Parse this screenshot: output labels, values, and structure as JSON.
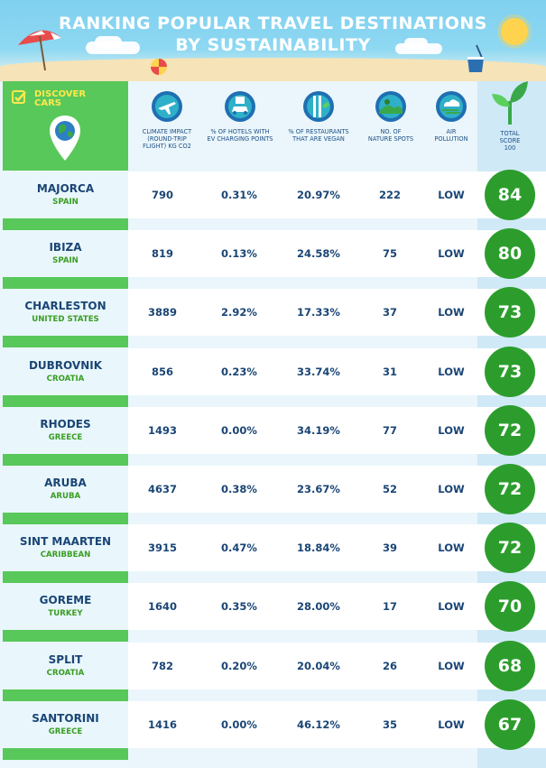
{
  "header": {
    "title_line1": "RANKING POPULAR TRAVEL DESTINATIONS",
    "title_line2": "BY SUSTAINABILITY"
  },
  "brand": {
    "line1": "DISCOVER",
    "line2": "CARS",
    "color": "#ffe84d"
  },
  "columns": [
    {
      "key": "climate",
      "icon": "airplane-icon",
      "label_lines": [
        "CLIMATE IMPACT",
        "(ROUND-TRIP",
        "FLIGHT) KG CO2"
      ]
    },
    {
      "key": "ev",
      "icon": "ev-charging-car-icon",
      "label_lines": [
        "% OF HOTELS WITH",
        "EV CHARGING POINTS"
      ]
    },
    {
      "key": "vegan",
      "icon": "vegan-cutlery-icon",
      "label_lines": [
        "% OF RESTAURANTS",
        "THAT ARE VEGAN"
      ]
    },
    {
      "key": "nature",
      "icon": "nature-hills-icon",
      "label_lines": [
        "NO. OF",
        "NATURE SPOTS"
      ]
    },
    {
      "key": "air",
      "icon": "cloud-wind-icon",
      "label_lines": [
        "AIR",
        "POLLUTION"
      ]
    },
    {
      "key": "score",
      "icon": "sprout-icon",
      "label_lines": [
        "TOTAL",
        "SCORE",
        "100"
      ]
    }
  ],
  "rows": [
    {
      "city": "MAJORCA",
      "country": "SPAIN",
      "climate": "790",
      "ev": "0.31%",
      "vegan": "20.97%",
      "nature": "222",
      "air": "LOW",
      "score": "84"
    },
    {
      "city": "IBIZA",
      "country": "SPAIN",
      "climate": "819",
      "ev": "0.13%",
      "vegan": "24.58%",
      "nature": "75",
      "air": "LOW",
      "score": "80"
    },
    {
      "city": "CHARLESTON",
      "country": "UNITED STATES",
      "climate": "3889",
      "ev": "2.92%",
      "vegan": "17.33%",
      "nature": "37",
      "air": "LOW",
      "score": "73"
    },
    {
      "city": "DUBROVNIK",
      "country": "CROATIA",
      "climate": "856",
      "ev": "0.23%",
      "vegan": "33.74%",
      "nature": "31",
      "air": "LOW",
      "score": "73"
    },
    {
      "city": "RHODES",
      "country": "GREECE",
      "climate": "1493",
      "ev": "0.00%",
      "vegan": "34.19%",
      "nature": "77",
      "air": "LOW",
      "score": "72"
    },
    {
      "city": "ARUBA",
      "country": "ARUBA",
      "climate": "4637",
      "ev": "0.38%",
      "vegan": "23.67%",
      "nature": "52",
      "air": "LOW",
      "score": "72"
    },
    {
      "city": "SINT MAARTEN",
      "country": "CARIBBEAN",
      "climate": "3915",
      "ev": "0.47%",
      "vegan": "18.84%",
      "nature": "39",
      "air": "LOW",
      "score": "72"
    },
    {
      "city": "GOREME",
      "country": "TURKEY",
      "climate": "1640",
      "ev": "0.35%",
      "vegan": "28.00%",
      "nature": "17",
      "air": "LOW",
      "score": "70"
    },
    {
      "city": "SPLIT",
      "country": "CROATIA",
      "climate": "782",
      "ev": "0.20%",
      "vegan": "20.04%",
      "nature": "26",
      "air": "LOW",
      "score": "68"
    },
    {
      "city": "SANTORINI",
      "country": "GREECE",
      "climate": "1416",
      "ev": "0.00%",
      "vegan": "46.12%",
      "nature": "35",
      "air": "LOW",
      "score": "67"
    }
  ],
  "colors": {
    "header_sky": "#7fd0ef",
    "panel_green": "#58c85a",
    "score_green": "#2c9d2c",
    "text_navy": "#1a4575",
    "country_green": "#3a9d23"
  }
}
